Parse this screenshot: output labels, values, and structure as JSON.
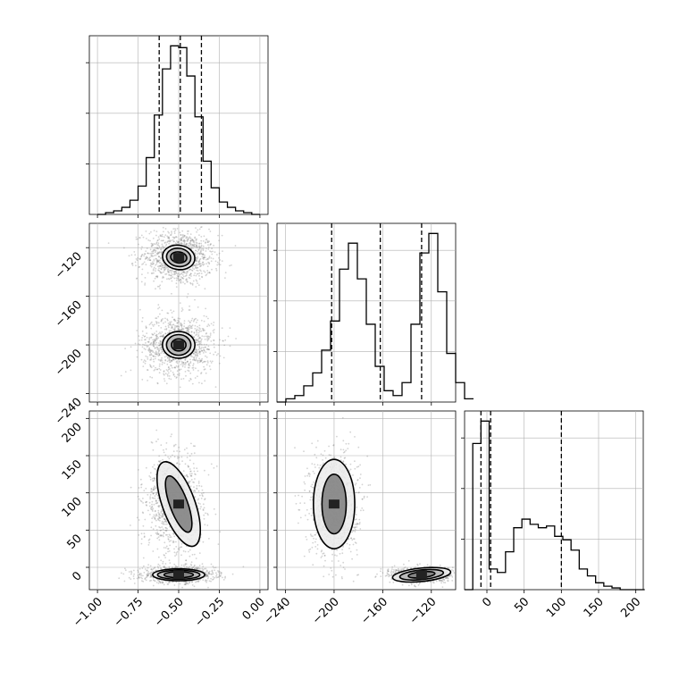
{
  "chart_data": [
    {
      "type": "histogram",
      "panel": "diag-0",
      "x_range": [
        -1.05,
        0.05
      ],
      "x_ticks": [
        -1.0,
        -0.75,
        -0.5,
        -0.25,
        0.0
      ],
      "grid": true,
      "edges_start": -1.0,
      "bin_width": 0.05,
      "counts": [
        0,
        1,
        2,
        4,
        8,
        16,
        32,
        56,
        82,
        95,
        94,
        78,
        55,
        30,
        15,
        7,
        4,
        2,
        1,
        0
      ],
      "quantiles": [
        -0.62,
        -0.49,
        -0.36
      ]
    },
    {
      "type": "histogram",
      "panel": "diag-1",
      "x_range": [
        -247,
        -100
      ],
      "x_ticks": [
        -240,
        -200,
        -160,
        -120
      ],
      "grid": true,
      "edges_start": -247,
      "bin_width": 7.35,
      "counts": [
        0,
        2,
        4,
        10,
        18,
        32,
        50,
        82,
        98,
        76,
        48,
        22,
        7,
        4,
        12,
        48,
        92,
        104,
        68,
        30,
        12,
        2
      ],
      "quantiles": [
        -202,
        -162,
        -128
      ]
    },
    {
      "type": "histogram",
      "panel": "diag-2",
      "x_range": [
        -30,
        210
      ],
      "x_ticks": [
        0,
        50,
        100,
        150,
        200
      ],
      "grid": true,
      "edges_start": -30,
      "bin_width": 11,
      "counts": [
        0,
        85,
        98,
        12,
        10,
        22,
        36,
        41,
        38,
        36,
        37,
        31,
        29,
        23,
        12,
        8,
        4,
        2,
        1,
        0,
        0,
        0
      ],
      "quantiles": [
        -8,
        5,
        100
      ]
    },
    {
      "type": "scatter",
      "panel": "pair-1-0",
      "x_range": [
        -1.05,
        0.05
      ],
      "y_range": [
        -247,
        -100
      ],
      "y_ticks": [
        -120,
        -160,
        -200,
        -240
      ],
      "blobs": [
        {
          "cx": -0.5,
          "cy": -128,
          "sx": 0.11,
          "sy": 11,
          "rot": -0.15,
          "n": 1100
        },
        {
          "cx": -0.5,
          "cy": -200,
          "sx": 0.11,
          "sy": 12,
          "rot": 0.0,
          "n": 1100
        }
      ],
      "contours": [
        {
          "cx": -0.5,
          "cy": -128,
          "levels": [
            [
              0.1,
              10,
              -0.15
            ],
            [
              0.075,
              7.5,
              -0.15
            ],
            [
              0.05,
              4.5,
              -0.15
            ]
          ]
        },
        {
          "cx": -0.5,
          "cy": -200,
          "levels": [
            [
              0.1,
              11,
              0
            ],
            [
              0.075,
              8.5,
              0
            ],
            [
              0.045,
              5,
              0
            ]
          ]
        }
      ]
    },
    {
      "type": "scatter",
      "panel": "pair-2-0",
      "x_range": [
        -1.05,
        0.05
      ],
      "y_range": [
        -30,
        210
      ],
      "x_ticks": [
        -1.0,
        -0.75,
        -0.5,
        -0.25,
        0.0
      ],
      "y_ticks": [
        0,
        50,
        100,
        150,
        200
      ],
      "blobs": [
        {
          "cx": -0.5,
          "cy": -10,
          "sx": 0.11,
          "sy": 5,
          "rot": 0,
          "n": 1100
        },
        {
          "cx": -0.53,
          "cy": 85,
          "sx": 0.09,
          "sy": 35,
          "rot": 0.35,
          "n": 1000
        }
      ],
      "contours": [
        {
          "cx": -0.5,
          "cy": -10,
          "levels": [
            [
              0.16,
              8,
              0
            ],
            [
              0.13,
              6,
              0
            ],
            [
              0.09,
              4,
              0
            ]
          ]
        },
        {
          "cx": -0.5,
          "cy": 85,
          "levels": [
            [
              0.1,
              60,
              0.35
            ],
            [
              0.055,
              40,
              0.35
            ]
          ]
        }
      ]
    },
    {
      "type": "scatter",
      "panel": "pair-2-1",
      "x_range": [
        -247,
        -100
      ],
      "y_range": [
        -30,
        210
      ],
      "x_ticks": [
        -240,
        -200,
        -160,
        -120
      ],
      "blobs": [
        {
          "cx": -200,
          "cy": 85,
          "sx": 10,
          "sy": 35,
          "rot": 0,
          "n": 1000
        },
        {
          "cx": -128,
          "cy": -10,
          "sx": 13,
          "sy": 5,
          "rot": 0.1,
          "n": 1000
        }
      ],
      "contours": [
        {
          "cx": -200,
          "cy": 85,
          "levels": [
            [
              17,
              60,
              0
            ],
            [
              10,
              40,
              0
            ]
          ]
        },
        {
          "cx": -128,
          "cy": -10,
          "levels": [
            [
              24,
              9,
              0.1
            ],
            [
              18,
              6.5,
              0.1
            ],
            [
              11,
              4,
              0.1
            ]
          ]
        }
      ]
    }
  ],
  "tick_labels": {
    "x0": [
      "−1.00",
      "−0.75",
      "−0.50",
      "−0.25",
      "0.00"
    ],
    "x1": [
      "−240",
      "−200",
      "−160",
      "−120"
    ],
    "x2": [
      "0",
      "50",
      "100",
      "150",
      "200"
    ],
    "y1": [
      "−120",
      "−160",
      "−200",
      "−240"
    ],
    "y2": [
      "0",
      "50",
      "100",
      "150",
      "200"
    ]
  },
  "colors": {
    "line": "#000000",
    "grid": "#b0b0b0",
    "points": "#808080"
  }
}
